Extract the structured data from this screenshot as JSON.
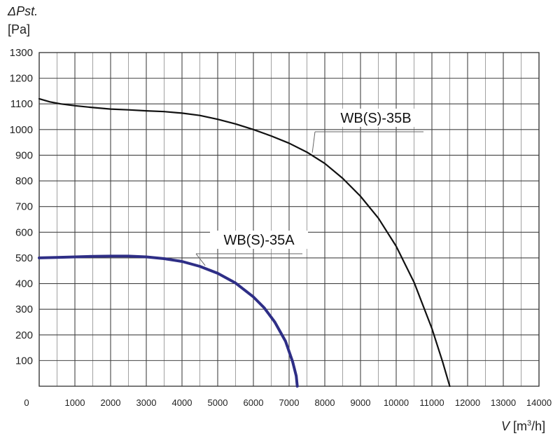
{
  "chart_data": {
    "type": "line",
    "ylabel_quantity": "ΔPst.",
    "ylabel_unit": "[Pa]",
    "xlabel_quantity": "V",
    "xlabel_unit_open": " [m",
    "xlabel_unit_sup": "3",
    "xlabel_unit_close": "/h]",
    "xlim": [
      0,
      14000
    ],
    "ylim": [
      0,
      1300
    ],
    "x_ticks": [
      0,
      1000,
      2000,
      3000,
      4000,
      5000,
      6000,
      7000,
      8000,
      9000,
      10000,
      11000,
      12000,
      13000,
      14000
    ],
    "y_ticks": [
      100,
      200,
      300,
      400,
      500,
      600,
      700,
      800,
      900,
      1000,
      1100,
      1200,
      1300
    ],
    "grid": true,
    "series": [
      {
        "name": "WB(S)-35B",
        "color": "#111111",
        "points": [
          [
            0,
            1120
          ],
          [
            300,
            1108
          ],
          [
            600,
            1100
          ],
          [
            1000,
            1093
          ],
          [
            1500,
            1086
          ],
          [
            2000,
            1080
          ],
          [
            2500,
            1077
          ],
          [
            3000,
            1073
          ],
          [
            3500,
            1070
          ],
          [
            4000,
            1064
          ],
          [
            4500,
            1055
          ],
          [
            5000,
            1040
          ],
          [
            5500,
            1022
          ],
          [
            6000,
            1000
          ],
          [
            6500,
            975
          ],
          [
            7000,
            947
          ],
          [
            7500,
            912
          ],
          [
            8000,
            868
          ],
          [
            8500,
            810
          ],
          [
            9000,
            740
          ],
          [
            9500,
            655
          ],
          [
            10000,
            545
          ],
          [
            10500,
            405
          ],
          [
            11000,
            225
          ],
          [
            11300,
            95
          ],
          [
            11500,
            0
          ]
        ]
      },
      {
        "name": "WB(S)-35A",
        "color": "#2e2e86",
        "points": [
          [
            0,
            500
          ],
          [
            500,
            502
          ],
          [
            1000,
            504
          ],
          [
            1500,
            506
          ],
          [
            2000,
            507
          ],
          [
            2500,
            507
          ],
          [
            3000,
            504
          ],
          [
            3500,
            497
          ],
          [
            4000,
            486
          ],
          [
            4500,
            467
          ],
          [
            5000,
            440
          ],
          [
            5500,
            402
          ],
          [
            6000,
            348
          ],
          [
            6300,
            306
          ],
          [
            6600,
            250
          ],
          [
            6900,
            175
          ],
          [
            7100,
            95
          ],
          [
            7200,
            40
          ],
          [
            7230,
            0
          ]
        ]
      }
    ],
    "annotations": [
      {
        "text": "WB(S)-35B",
        "series": 0
      },
      {
        "text": "WB(S)-35A",
        "series": 1
      }
    ]
  }
}
